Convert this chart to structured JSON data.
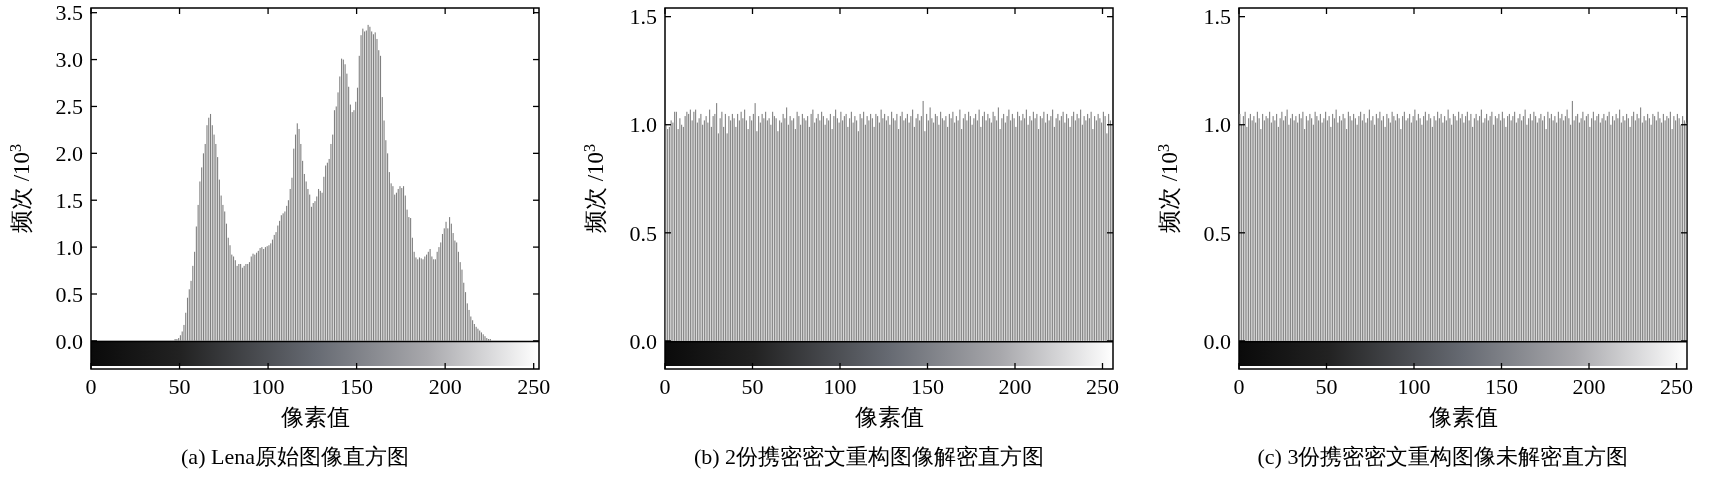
{
  "chart_data": [
    {
      "type": "histogram",
      "title": "(a) Lena原始图像直方图",
      "xlabel": "像素值",
      "ylabel": "频次 /10$^{3}$",
      "color": "#808080",
      "bins": [
        47,
        48,
        49,
        50,
        51,
        52,
        53,
        54,
        55,
        56,
        57,
        58,
        59,
        60,
        61,
        62,
        63,
        64,
        65,
        66,
        67,
        68,
        69,
        70,
        71,
        72,
        73,
        74,
        75,
        76,
        77,
        78,
        79,
        80,
        81,
        82,
        83,
        84,
        85,
        86,
        87,
        88,
        89,
        90,
        91,
        92,
        93,
        94,
        95,
        96,
        97,
        98,
        99,
        100,
        101,
        102,
        103,
        104,
        105,
        106,
        107,
        108,
        109,
        110,
        111,
        112,
        113,
        114,
        115,
        116,
        117,
        118,
        119,
        120,
        121,
        122,
        123,
        124,
        125,
        126,
        127,
        128,
        129,
        130,
        131,
        132,
        133,
        134,
        135,
        136,
        137,
        138,
        139,
        140,
        141,
        142,
        143,
        144,
        145,
        146,
        147,
        148,
        149,
        150,
        151,
        152,
        153,
        154,
        155,
        156,
        157,
        158,
        159,
        160,
        161,
        162,
        163,
        164,
        165,
        166,
        167,
        168,
        169,
        170,
        171,
        172,
        173,
        174,
        175,
        176,
        177,
        178,
        179,
        180,
        181,
        182,
        183,
        184,
        185,
        186,
        187,
        188,
        189,
        190,
        191,
        192,
        193,
        194,
        195,
        196,
        197,
        198,
        199,
        200,
        201,
        202,
        203,
        204,
        205,
        206,
        207,
        208,
        209,
        210,
        211,
        212,
        213,
        214,
        215,
        216,
        217,
        218,
        219,
        220,
        221,
        222,
        223,
        224,
        225,
        226
      ],
      "values": [
        0.02,
        0.02,
        0.03,
        0.06,
        0.1,
        0.17,
        0.3,
        0.46,
        0.55,
        0.64,
        0.8,
        0.95,
        1.22,
        1.45,
        1.7,
        1.85,
        2.0,
        2.1,
        2.3,
        2.38,
        2.42,
        2.3,
        2.2,
        2.1,
        1.96,
        1.72,
        1.55,
        1.45,
        1.38,
        1.25,
        1.1,
        1.02,
        0.92,
        0.9,
        0.86,
        0.8,
        0.82,
        0.82,
        0.78,
        0.8,
        0.82,
        0.82,
        0.84,
        0.9,
        0.93,
        0.92,
        0.94,
        0.96,
        0.99,
        1.0,
        0.98,
        1.0,
        1.01,
        1.02,
        1.04,
        1.08,
        1.13,
        1.16,
        1.23,
        1.28,
        1.34,
        1.36,
        1.38,
        1.44,
        1.5,
        1.62,
        1.74,
        2.05,
        2.2,
        2.32,
        2.26,
        2.1,
        1.92,
        1.78,
        1.7,
        1.62,
        1.56,
        1.43,
        1.47,
        1.49,
        1.54,
        1.62,
        1.6,
        1.58,
        1.75,
        1.87,
        1.9,
        1.94,
        2.1,
        2.2,
        2.46,
        2.5,
        2.65,
        2.82,
        3.01,
        3.0,
        2.95,
        2.85,
        2.71,
        2.52,
        2.44,
        2.46,
        2.55,
        2.7,
        3.04,
        3.26,
        3.33,
        3.3,
        3.31,
        3.37,
        3.35,
        3.3,
        3.27,
        3.29,
        3.22,
        3.1,
        3.04,
        2.6,
        2.35,
        2.14,
        2.0,
        1.8,
        1.68,
        1.65,
        1.56,
        1.58,
        1.62,
        1.65,
        1.63,
        1.65,
        1.55,
        1.4,
        1.32,
        1.31,
        1.1,
        0.95,
        0.89,
        0.87,
        0.89,
        0.88,
        0.87,
        0.9,
        0.92,
        0.95,
        0.98,
        0.9,
        0.87,
        0.87,
        0.95,
        1.0,
        1.05,
        1.14,
        1.2,
        1.27,
        1.2,
        1.32,
        1.25,
        1.15,
        1.07,
        1.05,
        0.95,
        0.84,
        0.76,
        0.62,
        0.52,
        0.4,
        0.33,
        0.26,
        0.22,
        0.18,
        0.15,
        0.13,
        0.11,
        0.09,
        0.07,
        0.05,
        0.03,
        0.02,
        0.02
      ],
      "xlim": [
        0,
        253
      ],
      "ylim": [
        -0.3,
        3.55
      ],
      "xticks": [
        0,
        50,
        100,
        150,
        200,
        250
      ],
      "yticks": [
        {
          "value": 0,
          "label": "0.0"
        },
        {
          "value": 0.5,
          "label": "0.5"
        },
        {
          "value": 1,
          "label": "1.0"
        },
        {
          "value": 1.5,
          "label": "1.5"
        },
        {
          "value": 2,
          "label": "2.0"
        },
        {
          "value": 2.5,
          "label": "2.5"
        },
        {
          "value": 3,
          "label": "3.0"
        },
        {
          "value": 3.5,
          "label": "3.5"
        }
      ]
    },
    {
      "type": "histogram",
      "title": "(b) 2份携密密文重构图像解密直方图",
      "xlabel": "像素值",
      "ylabel": "频次 /10$^{3}$",
      "color": "#808080",
      "bins": [
        0,
        1,
        2,
        3,
        4,
        5,
        6,
        7,
        8,
        9,
        10,
        11,
        12,
        13,
        14,
        15,
        16,
        17,
        18,
        19,
        20,
        21,
        22,
        23,
        24,
        25,
        26,
        27,
        28,
        29,
        30,
        31,
        32,
        33,
        34,
        35,
        36,
        37,
        38,
        39,
        40,
        41,
        42,
        43,
        44,
        45,
        46,
        47,
        48,
        49,
        50,
        51,
        52,
        53,
        54,
        55,
        56,
        57,
        58,
        59,
        60,
        61,
        62,
        63,
        64,
        65,
        66,
        67,
        68,
        69,
        70,
        71,
        72,
        73,
        74,
        75,
        76,
        77,
        78,
        79,
        80,
        81,
        82,
        83,
        84,
        85,
        86,
        87,
        88,
        89,
        90,
        91,
        92,
        93,
        94,
        95,
        96,
        97,
        98,
        99,
        100,
        101,
        102,
        103,
        104,
        105,
        106,
        107,
        108,
        109,
        110,
        111,
        112,
        113,
        114,
        115,
        116,
        117,
        118,
        119,
        120,
        121,
        122,
        123,
        124,
        125,
        126,
        127,
        128,
        129,
        130,
        131,
        132,
        133,
        134,
        135,
        136,
        137,
        138,
        139,
        140,
        141,
        142,
        143,
        144,
        145,
        146,
        147,
        148,
        149,
        150,
        151,
        152,
        153,
        154,
        155,
        156,
        157,
        158,
        159,
        160,
        161,
        162,
        163,
        164,
        165,
        166,
        167,
        168,
        169,
        170,
        171,
        172,
        173,
        174,
        175,
        176,
        177,
        178,
        179,
        180,
        181,
        182,
        183,
        184,
        185,
        186,
        187,
        188,
        189,
        190,
        191,
        192,
        193,
        194,
        195,
        196,
        197,
        198,
        199,
        200,
        201,
        202,
        203,
        204,
        205,
        206,
        207,
        208,
        209,
        210,
        211,
        212,
        213,
        214,
        215,
        216,
        217,
        218,
        219,
        220,
        221,
        222,
        223,
        224,
        225,
        226,
        227,
        228,
        229,
        230,
        231,
        232,
        233,
        234,
        235,
        236,
        237,
        238,
        239,
        240,
        241,
        242,
        243,
        244,
        245,
        246,
        247,
        248,
        249,
        250,
        251,
        252,
        253,
        254,
        255,
        256
      ],
      "values": [
        1.0,
        0.98,
        0.99,
        1.02,
        1.01,
        1.06,
        1.06,
        0.98,
        1.03,
        1.0,
        0.99,
        1.04,
        1.06,
        1.05,
        1.07,
        1.02,
        1.06,
        1.07,
        1.01,
        1.03,
        1.05,
        1.0,
        1.02,
        1.04,
        1.01,
        1.07,
        0.99,
        1.04,
        1.05,
        1.1,
        0.96,
        1.03,
        1.06,
        0.99,
        1.05,
        0.96,
        1.04,
        1.02,
        1.05,
        1.03,
        0.99,
        1.05,
        1.02,
        1.06,
        1.03,
        1.07,
        1.02,
        0.98,
        1.04,
        1.02,
        1.05,
        1.1,
        0.97,
        1.04,
        1.01,
        1.05,
        1.03,
        1.06,
        1.02,
        1.03,
        1.0,
        1.06,
        1.04,
        1.03,
        0.97,
        1.02,
        1.01,
        1.05,
        1.03,
        1.08,
        1.0,
        1.04,
        1.02,
        1.03,
        0.98,
        1.06,
        1.04,
        1.0,
        1.05,
        1.03,
        1.02,
        1.04,
        0.99,
        1.05,
        1.07,
        1.01,
        1.03,
        1.05,
        1.02,
        1.06,
        1.04,
        1.0,
        1.03,
        1.02,
        1.05,
        0.98,
        1.04,
        1.07,
        1.03,
        1.01,
        1.06,
        1.02,
        1.04,
        1.05,
        0.99,
        1.03,
        1.06,
        1.01,
        1.04,
        1.02,
        0.97,
        1.05,
        1.03,
        1.06,
        1.0,
        1.04,
        1.02,
        1.05,
        1.03,
        0.99,
        1.05,
        1.04,
        1.01,
        1.07,
        1.03,
        1.05,
        1.02,
        1.04,
        1.0,
        1.06,
        1.03,
        1.02,
        1.05,
        0.98,
        1.04,
        1.06,
        1.02,
        1.03,
        1.05,
        1.01,
        1.04,
        1.07,
        0.99,
        1.03,
        1.05,
        1.02,
        1.04,
        1.11,
        0.97,
        1.05,
        1.02,
        1.08,
        1.03,
        1.01,
        1.05,
        1.04,
        1.0,
        1.06,
        1.03,
        1.02,
        1.04,
        0.99,
        1.05,
        1.03,
        1.06,
        1.01,
        1.04,
        1.02,
        1.07,
        0.98,
        1.03,
        1.05,
        1.02,
        1.06,
        1.04,
        1.0,
        1.03,
        1.05,
        1.02,
        1.07,
        0.99,
        1.04,
        1.06,
        1.02,
        1.05,
        1.03,
        1.01,
        1.06,
        1.04,
        1.02,
        1.08,
        0.98,
        1.03,
        1.05,
        1.01,
        1.04,
        1.07,
        1.02,
        1.05,
        1.03,
        0.99,
        1.06,
        1.04,
        1.02,
        1.05,
        1.03,
        1.07,
        1.0,
        1.04,
        1.02,
        1.06,
        1.03,
        1.05,
        0.98,
        1.04,
        1.03,
        1.06,
        1.01,
        1.05,
        1.02,
        1.04,
        1.07,
        0.99,
        1.03,
        1.05,
        1.02,
        1.04,
        1.06,
        1.01,
        1.05,
        1.03,
        0.99,
        1.04,
        1.06,
        1.02,
        1.05,
        1.03,
        1.07,
        1.0,
        1.04,
        1.02,
        1.05,
        1.03,
        1.06,
        0.98,
        1.04,
        1.02,
        1.05,
        1.03,
        1.01,
        1.06,
        1.04,
        0.96,
        1.05,
        1.02,
        1.0
      ],
      "xlim": [
        0,
        256
      ],
      "ylim": [
        -0.13,
        1.54
      ],
      "xticks": [
        0,
        50,
        100,
        150,
        200,
        250
      ],
      "yticks": [
        {
          "value": 0,
          "label": "0.0"
        },
        {
          "value": 0.5,
          "label": "0.5"
        },
        {
          "value": 1,
          "label": "1.0"
        },
        {
          "value": 1.5,
          "label": "1.5"
        }
      ]
    },
    {
      "type": "histogram",
      "title": "(c) 3份携密密文重构图像未解密直方图",
      "xlabel": "像素值",
      "ylabel": "频次 /10$^{3}$",
      "color": "#808080",
      "bins": [
        0,
        1,
        2,
        3,
        4,
        5,
        6,
        7,
        8,
        9,
        10,
        11,
        12,
        13,
        14,
        15,
        16,
        17,
        18,
        19,
        20,
        21,
        22,
        23,
        24,
        25,
        26,
        27,
        28,
        29,
        30,
        31,
        32,
        33,
        34,
        35,
        36,
        37,
        38,
        39,
        40,
        41,
        42,
        43,
        44,
        45,
        46,
        47,
        48,
        49,
        50,
        51,
        52,
        53,
        54,
        55,
        56,
        57,
        58,
        59,
        60,
        61,
        62,
        63,
        64,
        65,
        66,
        67,
        68,
        69,
        70,
        71,
        72,
        73,
        74,
        75,
        76,
        77,
        78,
        79,
        80,
        81,
        82,
        83,
        84,
        85,
        86,
        87,
        88,
        89,
        90,
        91,
        92,
        93,
        94,
        95,
        96,
        97,
        98,
        99,
        100,
        101,
        102,
        103,
        104,
        105,
        106,
        107,
        108,
        109,
        110,
        111,
        112,
        113,
        114,
        115,
        116,
        117,
        118,
        119,
        120,
        121,
        122,
        123,
        124,
        125,
        126,
        127,
        128,
        129,
        130,
        131,
        132,
        133,
        134,
        135,
        136,
        137,
        138,
        139,
        140,
        141,
        142,
        143,
        144,
        145,
        146,
        147,
        148,
        149,
        150,
        151,
        152,
        153,
        154,
        155,
        156,
        157,
        158,
        159,
        160,
        161,
        162,
        163,
        164,
        165,
        166,
        167,
        168,
        169,
        170,
        171,
        172,
        173,
        174,
        175,
        176,
        177,
        178,
        179,
        180,
        181,
        182,
        183,
        184,
        185,
        186,
        187,
        188,
        189,
        190,
        191,
        192,
        193,
        194,
        195,
        196,
        197,
        198,
        199,
        200,
        201,
        202,
        203,
        204,
        205,
        206,
        207,
        208,
        209,
        210,
        211,
        212,
        213,
        214,
        215,
        216,
        217,
        218,
        219,
        220,
        221,
        222,
        223,
        224,
        225,
        226,
        227,
        228,
        229,
        230,
        231,
        232,
        233,
        234,
        235,
        236,
        237,
        238,
        239,
        240,
        241,
        242,
        243,
        244,
        245,
        246,
        247,
        248,
        249,
        250,
        251,
        252,
        253,
        254,
        255,
        256
      ],
      "values": [
        1.05,
        1.0,
        1.04,
        1.06,
        0.99,
        1.03,
        1.05,
        1.02,
        1.04,
        1.01,
        1.06,
        1.03,
        0.98,
        1.05,
        1.02,
        1.04,
        1.03,
        1.06,
        1.01,
        1.04,
        1.02,
        1.05,
        0.99,
        1.03,
        1.06,
        1.02,
        1.04,
        1.07,
        1.0,
        1.03,
        1.05,
        1.02,
        1.04,
        1.01,
        1.05,
        1.03,
        1.06,
        0.98,
        1.04,
        1.02,
        1.05,
        1.03,
        1.0,
        1.06,
        1.04,
        1.02,
        1.05,
        1.01,
        1.03,
        1.06,
        1.02,
        1.04,
        0.99,
        1.05,
        1.03,
        1.07,
        1.01,
        1.04,
        1.02,
        1.05,
        1.03,
        0.98,
        1.06,
        1.04,
        1.02,
        1.05,
        1.03,
        1.0,
        1.04,
        1.06,
        1.02,
        1.05,
        1.01,
        1.03,
        1.07,
        1.02,
        1.04,
        1.0,
        1.05,
        1.03,
        1.06,
        1.02,
        1.04,
        0.99,
        1.05,
        1.03,
        1.01,
        1.06,
        1.04,
        1.02,
        1.05,
        1.03,
        0.98,
        1.04,
        1.06,
        1.02,
        1.03,
        1.05,
        1.01,
        1.04,
        1.07,
        1.02,
        1.05,
        1.03,
        1.0,
        1.04,
        1.06,
        1.02,
        1.05,
        1.03,
        0.99,
        1.04,
        1.02,
        1.06,
        1.03,
        1.05,
        1.01,
        1.04,
        1.02,
        1.07,
        1.03,
        1.0,
        1.05,
        1.04,
        1.02,
        1.06,
        1.03,
        1.05,
        1.01,
        1.04,
        1.06,
        1.02,
        1.05,
        0.99,
        1.03,
        1.05,
        1.02,
        1.04,
        1.07,
        1.01,
        1.03,
        1.05,
        1.02,
        1.04,
        1.06,
        1.0,
        1.04,
        1.03,
        1.05,
        1.02,
        1.06,
        1.03,
        0.99,
        1.04,
        1.05,
        1.02,
        1.04,
        1.06,
        1.01,
        1.03,
        1.05,
        1.02,
        1.04,
        1.07,
        1.0,
        1.03,
        1.05,
        1.02,
        1.06,
        1.04,
        1.01,
        1.03,
        1.05,
        1.02,
        1.04,
        0.98,
        1.06,
        1.03,
        1.05,
        1.02,
        1.04,
        1.01,
        1.06,
        1.03,
        1.05,
        1.02,
        1.04,
        1.07,
        1.03,
        1.0,
        1.11,
        1.02,
        1.04,
        1.05,
        1.01,
        1.03,
        1.06,
        1.02,
        1.04,
        1.05,
        0.99,
        1.03,
        1.06,
        1.02,
        1.04,
        1.05,
        1.01,
        1.03,
        1.05,
        1.02,
        1.04,
        1.06,
        1.0,
        1.04,
        1.02,
        1.05,
        1.03,
        1.07,
        1.01,
        1.04,
        1.02,
        1.05,
        1.03,
        0.99,
        1.04,
        1.06,
        1.02,
        1.05,
        1.03,
        1.08,
        1.01,
        1.04,
        1.02,
        1.05,
        1.03,
        1.0,
        1.05,
        1.04,
        1.02,
        1.06,
        1.03,
        1.01,
        1.05,
        1.02,
        1.04,
        1.03,
        1.06,
        0.98,
        1.04,
        1.02,
        1.05,
        1.03,
        1.0,
        1.04,
        1.02,
        1.01
      ],
      "xlim": [
        0,
        256
      ],
      "ylim": [
        -0.13,
        1.54
      ],
      "xticks": [
        0,
        50,
        100,
        150,
        200,
        250
      ],
      "yticks": [
        {
          "value": 0,
          "label": "0.0"
        },
        {
          "value": 0.5,
          "label": "0.5"
        },
        {
          "value": 1,
          "label": "1.0"
        },
        {
          "value": 1.5,
          "label": "1.5"
        }
      ]
    }
  ]
}
